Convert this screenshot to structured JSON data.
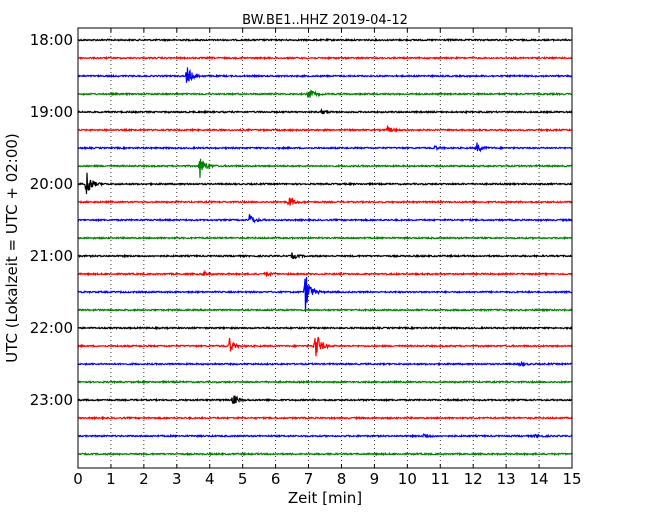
{
  "chart_data": {
    "type": "line",
    "title": "BW.BE1..HHZ 2019-04-12",
    "xlabel": "Zeit  [min]",
    "ylabel": "UTC (Lokalzeit = UTC + 02:00)",
    "xlim": [
      0,
      15
    ],
    "x_ticks": [
      "0",
      "1",
      "2",
      "3",
      "4",
      "5",
      "6",
      "7",
      "8",
      "9",
      "10",
      "11",
      "12",
      "13",
      "14",
      "15"
    ],
    "y_ticks": [
      "18:00",
      "19:00",
      "20:00",
      "21:00",
      "22:00",
      "23:00"
    ],
    "grid": "vertical dotted at each minute",
    "trace_colors": [
      "#000000",
      "#ff0000",
      "#0000ff",
      "#008000"
    ],
    "traces": [
      {
        "start": "18:00",
        "color": "#000000",
        "events": []
      },
      {
        "start": "18:15",
        "color": "#ff0000",
        "events": []
      },
      {
        "start": "18:30",
        "color": "#0000ff",
        "events": [
          {
            "minute": 3.3,
            "amplitude": 0.5
          }
        ]
      },
      {
        "start": "18:45",
        "color": "#008000",
        "events": [
          {
            "minute": 7.0,
            "amplitude": 0.3
          }
        ]
      },
      {
        "start": "19:00",
        "color": "#000000",
        "events": [
          {
            "minute": 7.4,
            "amplitude": 0.1
          }
        ]
      },
      {
        "start": "19:15",
        "color": "#ff0000",
        "events": [
          {
            "minute": 9.4,
            "amplitude": 0.15
          }
        ]
      },
      {
        "start": "19:30",
        "color": "#0000ff",
        "events": [
          {
            "minute": 12.1,
            "amplitude": 0.25
          },
          {
            "minute": 10.8,
            "amplitude": 0.1
          }
        ]
      },
      {
        "start": "19:45",
        "color": "#008000",
        "events": [
          {
            "minute": 3.7,
            "amplitude": 0.55
          }
        ]
      },
      {
        "start": "20:00",
        "color": "#000000",
        "events": [
          {
            "minute": 0.25,
            "amplitude": 0.75
          }
        ]
      },
      {
        "start": "20:15",
        "color": "#ff0000",
        "events": [
          {
            "minute": 6.4,
            "amplitude": 0.3
          }
        ]
      },
      {
        "start": "20:30",
        "color": "#0000ff",
        "events": [
          {
            "minute": 5.2,
            "amplitude": 0.3
          }
        ]
      },
      {
        "start": "20:45",
        "color": "#008000",
        "events": []
      },
      {
        "start": "21:00",
        "color": "#000000",
        "events": [
          {
            "minute": 6.5,
            "amplitude": 0.15
          }
        ]
      },
      {
        "start": "21:15",
        "color": "#ff0000",
        "events": [
          {
            "minute": 3.8,
            "amplitude": 0.12
          },
          {
            "minute": 5.7,
            "amplitude": 0.12
          }
        ]
      },
      {
        "start": "21:30",
        "color": "#0000ff",
        "events": [
          {
            "minute": 6.9,
            "amplitude": 1.0
          }
        ]
      },
      {
        "start": "21:45",
        "color": "#008000",
        "events": []
      },
      {
        "start": "22:00",
        "color": "#000000",
        "events": []
      },
      {
        "start": "22:15",
        "color": "#ff0000",
        "events": [
          {
            "minute": 4.6,
            "amplitude": 0.35
          },
          {
            "minute": 7.2,
            "amplitude": 0.85
          }
        ]
      },
      {
        "start": "22:30",
        "color": "#0000ff",
        "events": [
          {
            "minute": 13.4,
            "amplitude": 0.1
          }
        ]
      },
      {
        "start": "22:45",
        "color": "#008000",
        "events": []
      },
      {
        "start": "23:00",
        "color": "#000000",
        "events": [
          {
            "minute": 4.7,
            "amplitude": 0.3
          }
        ]
      },
      {
        "start": "23:15",
        "color": "#ff0000",
        "events": []
      },
      {
        "start": "23:30",
        "color": "#0000ff",
        "events": [
          {
            "minute": 10.5,
            "amplitude": 0.15
          },
          {
            "minute": 13.9,
            "amplitude": 0.1
          }
        ]
      },
      {
        "start": "23:45",
        "color": "#008000",
        "events": []
      }
    ]
  }
}
